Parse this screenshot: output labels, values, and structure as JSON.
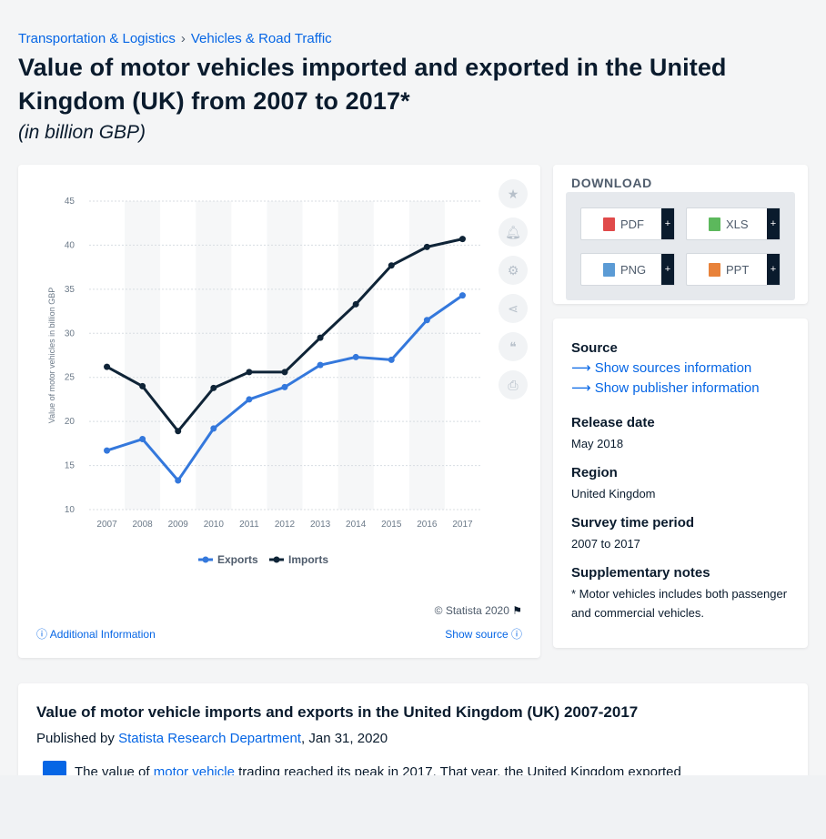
{
  "breadcrumb": {
    "items": [
      "Transportation & Logistics",
      "Vehicles & Road Traffic"
    ],
    "separator": "›"
  },
  "title": "Value of motor vehicles imported and exported in the United Kingdom (UK) from 2007 to 2017*",
  "subtitle": "(in billion GBP)",
  "chart_data": {
    "type": "line",
    "x": [
      "2007",
      "2008",
      "2009",
      "2010",
      "2011",
      "2012",
      "2013",
      "2014",
      "2015",
      "2016",
      "2017"
    ],
    "series": [
      {
        "name": "Exports",
        "color": "#3478dc",
        "values": [
          16.7,
          18.0,
          13.3,
          19.2,
          22.5,
          23.9,
          26.4,
          27.3,
          27.0,
          31.5,
          34.3
        ]
      },
      {
        "name": "Imports",
        "color": "#0f2437",
        "values": [
          26.2,
          24.0,
          18.9,
          23.8,
          25.6,
          25.6,
          29.5,
          33.3,
          37.7,
          39.8,
          40.7
        ]
      }
    ],
    "yticks": [
      "10",
      "15",
      "20",
      "25",
      "30",
      "35",
      "40",
      "45"
    ],
    "ylim": [
      10,
      45
    ],
    "ylabel": "Value of motor vehicles in billion GBP",
    "xlabel": "",
    "grid": true,
    "legend_position": "bottom"
  },
  "chart_footer": {
    "copyright": "© Statista 2020",
    "additional_info": "Additional Information",
    "show_source": "Show source"
  },
  "tools": {
    "icons": [
      "star-icon",
      "bell-icon",
      "gear-icon",
      "share-icon",
      "quote-icon",
      "print-icon"
    ]
  },
  "download": {
    "title": "DOWNLOAD",
    "buttons": [
      {
        "label": "PDF",
        "color": "#e04a4a"
      },
      {
        "label": "XLS",
        "color": "#5cb85c"
      },
      {
        "label": "PNG",
        "color": "#5b9bd5"
      },
      {
        "label": "PPT",
        "color": "#e8823a"
      }
    ],
    "plus": "+"
  },
  "info": {
    "source_heading": "Source",
    "show_sources": "Show sources information",
    "show_publisher": "Show publisher information",
    "release_heading": "Release date",
    "release_value": "May 2018",
    "region_heading": "Region",
    "region_value": "United Kingdom",
    "survey_heading": "Survey time period",
    "survey_value": "2007 to 2017",
    "notes_heading": "Supplementary notes",
    "notes_value": "* Motor vehicles includes both passenger and commercial vehicles."
  },
  "article": {
    "title": "Value of motor vehicle imports and exports in the United Kingdom (UK) 2007-2017",
    "published_prefix": "Published by",
    "publisher": "Statista Research Department",
    "date": ", Jan 31, 2020",
    "body_prefix": "The value of",
    "body_link": "motor vehicle",
    "body_suffix": "trading reached its peak in 2017. That year, the United Kingdom exported"
  }
}
